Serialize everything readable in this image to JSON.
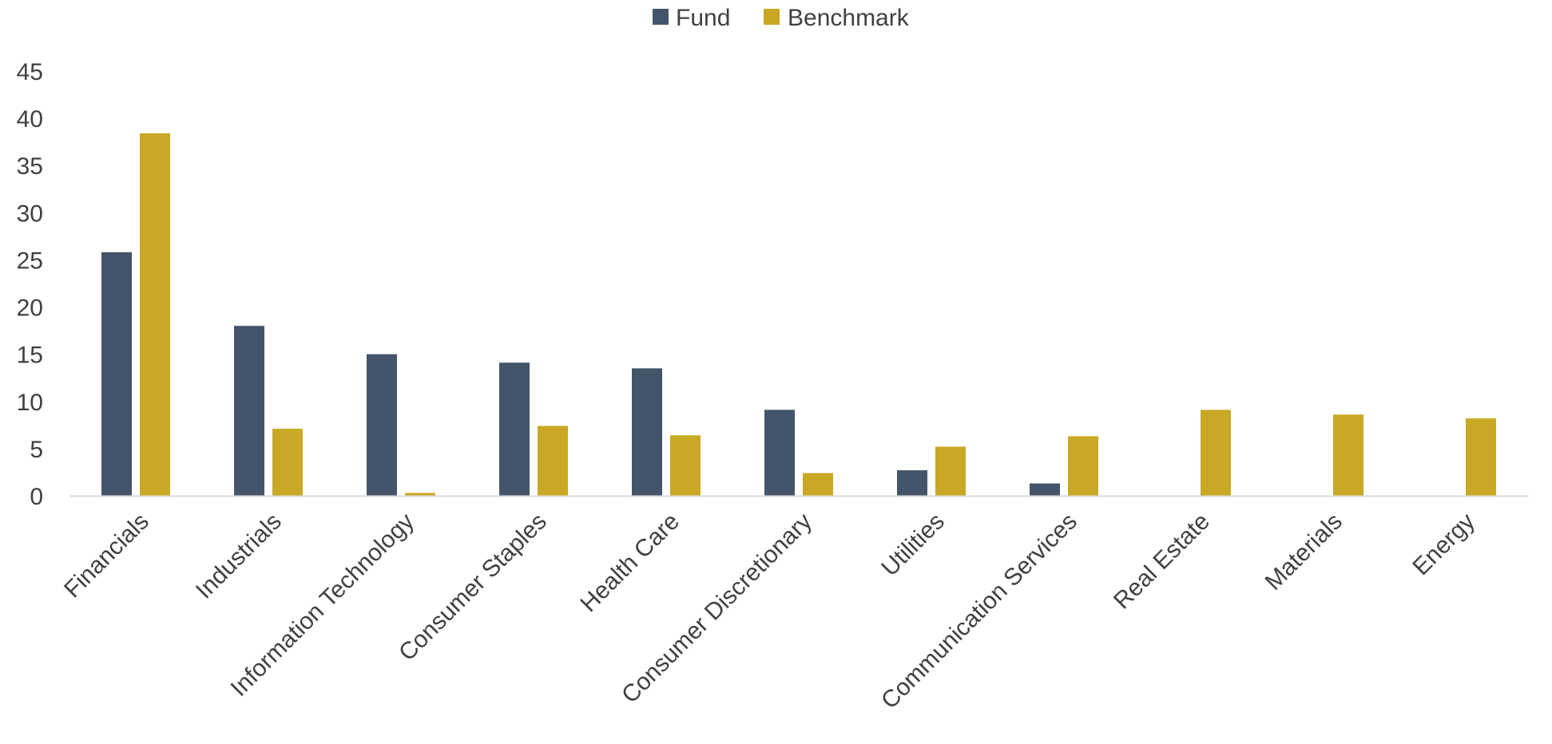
{
  "chart_data": {
    "type": "bar",
    "categories": [
      "Financials",
      "Industrials",
      "Information Technology",
      "Consumer Staples",
      "Health Care",
      "Consumer Discretionary",
      "Utilities",
      "Communication Services",
      "Real Estate",
      "Materials",
      "Energy"
    ],
    "series": [
      {
        "name": "Fund",
        "color": "#44546A",
        "values": [
          25.8,
          18.0,
          15.0,
          14.1,
          13.5,
          9.1,
          2.7,
          1.3,
          0,
          0,
          0
        ]
      },
      {
        "name": "Benchmark",
        "color": "#C9A825",
        "values": [
          38.4,
          7.1,
          0.3,
          7.4,
          6.4,
          2.4,
          5.2,
          6.3,
          9.1,
          8.6,
          8.2
        ]
      }
    ],
    "ylim": [
      0,
      45
    ],
    "yticks": [
      0,
      5,
      10,
      15,
      20,
      25,
      30,
      35,
      40,
      45
    ],
    "legend_position": "top-center",
    "grid": false
  }
}
